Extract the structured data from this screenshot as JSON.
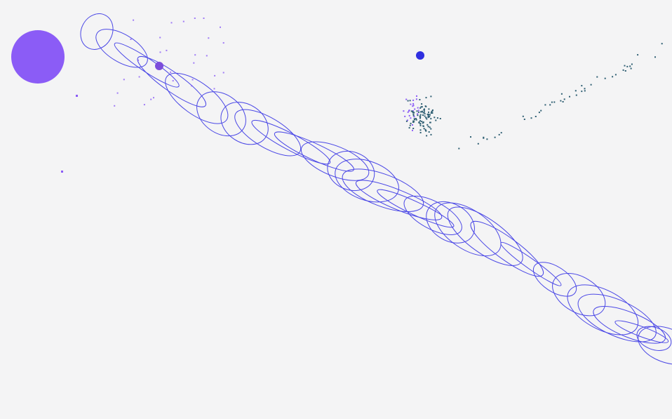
{
  "canvas": {
    "background": "#f4f4f5"
  },
  "colors": {
    "loops": "#4b48e6",
    "big_orb": "#8b5cf6",
    "small_orb": "#7c4ddb",
    "blue_orb": "#2f2fe0",
    "particles_purple": "#8b5cf6",
    "particles_teal": "#2f5f73"
  },
  "scene": {
    "objects": [
      "big-orb",
      "small-orb",
      "blue-orb",
      "spiral-trail",
      "particle-cloud",
      "particle-streak"
    ]
  }
}
